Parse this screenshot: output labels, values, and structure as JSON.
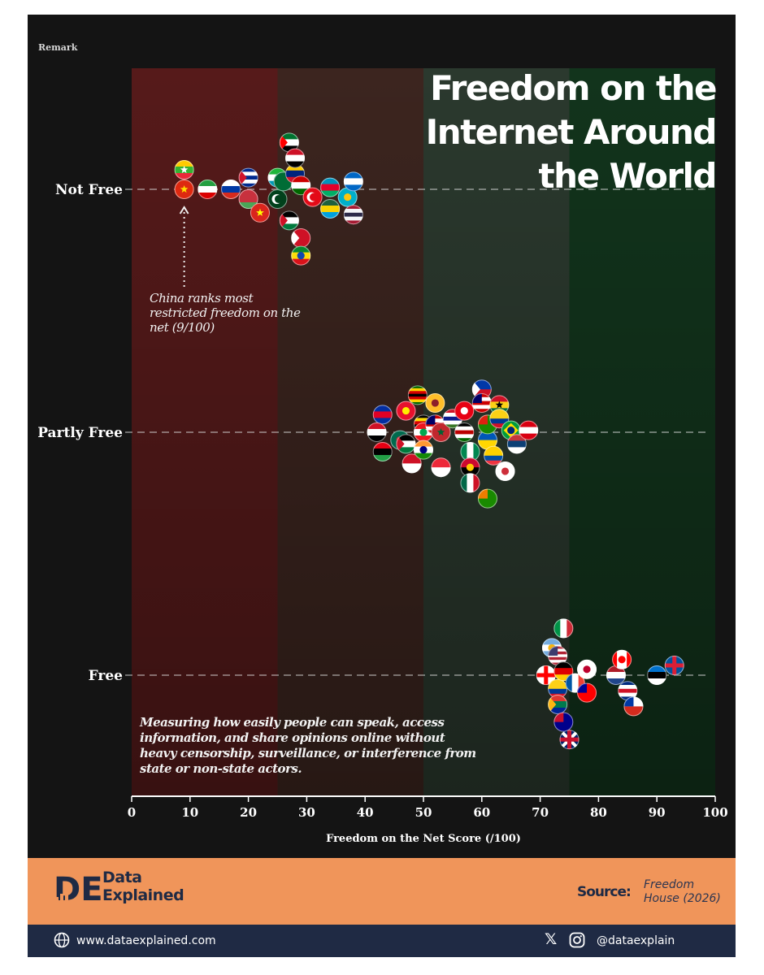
{
  "header": {
    "remark": "Remark",
    "title": "Freedom on the Internet Around the World"
  },
  "annotation": "China ranks most restricted freedom on the net (9/100)",
  "description": "Measuring how easily people can speak, access information, and share opinions online without heavy censorship, surveillance, or interference from state or non-state actors.",
  "chart_data": {
    "type": "scatter",
    "title": "Freedom on the Internet Around the World",
    "xlabel": "Freedom on the Net Score (/100)",
    "ylabel": "",
    "xlim": [
      0,
      100
    ],
    "x_ticks": [
      "0",
      "10",
      "20",
      "30",
      "40",
      "50",
      "60",
      "70",
      "80",
      "90",
      "100"
    ],
    "categories": [
      "Not Free",
      "Partly Free",
      "Free"
    ],
    "bands": [
      {
        "from": 0,
        "to": 25,
        "color": "#5a1a1a"
      },
      {
        "from": 25,
        "to": 50,
        "color": "#3e2620"
      },
      {
        "from": 50,
        "to": 75,
        "color": "#2c3b2f"
      },
      {
        "from": 75,
        "to": 100,
        "color": "#12361c"
      }
    ],
    "series": [
      {
        "name": "Not Free",
        "points": [
          {
            "x": 9,
            "dy": 0,
            "flag": "china"
          },
          {
            "x": 9,
            "dy": -1,
            "flag": "myanmar"
          },
          {
            "x": 13,
            "dy": 0,
            "flag": "iran"
          },
          {
            "x": 17,
            "dy": 0,
            "flag": "russia"
          },
          {
            "x": 20,
            "dy": 0.5,
            "flag": "belarus"
          },
          {
            "x": 20,
            "dy": -0.6,
            "flag": "cuba"
          },
          {
            "x": 22,
            "dy": 1.2,
            "flag": "vietnam"
          },
          {
            "x": 25,
            "dy": -0.6,
            "flag": "uzbekistan"
          },
          {
            "x": 25,
            "dy": 0.5,
            "flag": "pakistan"
          },
          {
            "x": 26,
            "dy": -0.4,
            "flag": "saudi-arabia"
          },
          {
            "x": 27,
            "dy": -2.4,
            "flag": "uae"
          },
          {
            "x": 28,
            "dy": -0.8,
            "flag": "venezuela"
          },
          {
            "x": 28,
            "dy": -1.6,
            "flag": "egypt"
          },
          {
            "x": 27,
            "dy": 1.6,
            "flag": "jordan"
          },
          {
            "x": 29,
            "dy": 2.5,
            "flag": "bahrain"
          },
          {
            "x": 29,
            "dy": 3.4,
            "flag": "ethiopia"
          },
          {
            "x": 29,
            "dy": -0.2,
            "flag": "tajikistan"
          },
          {
            "x": 31,
            "dy": 0.4,
            "flag": "turkey"
          },
          {
            "x": 34,
            "dy": -0.1,
            "flag": "azerbaijan"
          },
          {
            "x": 34,
            "dy": 1.0,
            "flag": "rwanda"
          },
          {
            "x": 37,
            "dy": 0.4,
            "flag": "kazakhstan"
          },
          {
            "x": 38,
            "dy": -0.4,
            "flag": "nicaragua"
          },
          {
            "x": 38,
            "dy": 1.3,
            "flag": "thailand"
          }
        ]
      },
      {
        "name": "Partly Free",
        "points": [
          {
            "x": 43,
            "dy": -0.9,
            "flag": "cambodia"
          },
          {
            "x": 42,
            "dy": 0,
            "flag": "iraq"
          },
          {
            "x": 43,
            "dy": 1.0,
            "flag": "libya"
          },
          {
            "x": 46,
            "dy": 0.4,
            "flag": "bangladesh"
          },
          {
            "x": 47,
            "dy": -1.1,
            "flag": "kyrgyzstan"
          },
          {
            "x": 47,
            "dy": 0.6,
            "flag": "palestine"
          },
          {
            "x": 48,
            "dy": 1.6,
            "flag": "indonesia"
          },
          {
            "x": 49,
            "dy": -1.9,
            "flag": "zimbabwe"
          },
          {
            "x": 50,
            "dy": -0.4,
            "flag": "uganda"
          },
          {
            "x": 50,
            "dy": 0,
            "flag": "lebanon"
          },
          {
            "x": 50,
            "dy": 0.9,
            "flag": "india"
          },
          {
            "x": 52,
            "dy": -1.5,
            "flag": "sri-lanka"
          },
          {
            "x": 52,
            "dy": -0.4,
            "flag": "malaysia"
          },
          {
            "x": 53,
            "dy": 0,
            "flag": "morocco"
          },
          {
            "x": 53,
            "dy": 1.8,
            "flag": "singapore"
          },
          {
            "x": 55,
            "dy": -0.7,
            "flag": "gambia"
          },
          {
            "x": 57,
            "dy": 0,
            "flag": "kenya"
          },
          {
            "x": 57,
            "dy": -1.1,
            "flag": "tunisia"
          },
          {
            "x": 58,
            "dy": 1.0,
            "flag": "nigeria"
          },
          {
            "x": 58,
            "dy": 1.8,
            "flag": "angola"
          },
          {
            "x": 58,
            "dy": 2.6,
            "flag": "mexico"
          },
          {
            "x": 60,
            "dy": -2.2,
            "flag": "philippines"
          },
          {
            "x": 60,
            "dy": -1.5,
            "flag": "malaysia-2"
          },
          {
            "x": 61,
            "dy": 0.4,
            "flag": "ukraine"
          },
          {
            "x": 61,
            "dy": -0.4,
            "flag": "zambia"
          },
          {
            "x": 61,
            "dy": 3.4,
            "flag": "zambia-2"
          },
          {
            "x": 62,
            "dy": 1.2,
            "flag": "ecuador"
          },
          {
            "x": 63,
            "dy": -1.4,
            "flag": "ghana"
          },
          {
            "x": 63,
            "dy": -0.7,
            "flag": "colombia"
          },
          {
            "x": 64,
            "dy": 2.0,
            "flag": "south-korea"
          },
          {
            "x": 65,
            "dy": -0.1,
            "flag": "brazil"
          },
          {
            "x": 66,
            "dy": 0.6,
            "flag": "serbia"
          },
          {
            "x": 68,
            "dy": -0.1,
            "flag": "armenia"
          }
        ]
      },
      {
        "name": "Free",
        "points": [
          {
            "x": 71,
            "dy": 0,
            "flag": "georgia"
          },
          {
            "x": 72,
            "dy": -1.4,
            "flag": "argentina"
          },
          {
            "x": 73,
            "dy": -1.0,
            "flag": "usa"
          },
          {
            "x": 73,
            "dy": 0.7,
            "flag": "colombia-2"
          },
          {
            "x": 73,
            "dy": 1.5,
            "flag": "south-africa"
          },
          {
            "x": 74,
            "dy": -2.4,
            "flag": "italy"
          },
          {
            "x": 74,
            "dy": 2.4,
            "flag": "australia"
          },
          {
            "x": 74,
            "dy": -0.2,
            "flag": "germany"
          },
          {
            "x": 75,
            "dy": 3.3,
            "flag": "uk"
          },
          {
            "x": 76,
            "dy": 0.4,
            "flag": "france"
          },
          {
            "x": 78,
            "dy": -0.3,
            "flag": "japan"
          },
          {
            "x": 78,
            "dy": 0.9,
            "flag": "taiwan"
          },
          {
            "x": 83,
            "dy": 0,
            "flag": "netherlands"
          },
          {
            "x": 84,
            "dy": -0.8,
            "flag": "canada"
          },
          {
            "x": 85,
            "dy": 0.8,
            "flag": "costa-rica"
          },
          {
            "x": 86,
            "dy": 1.6,
            "flag": "chile"
          },
          {
            "x": 90,
            "dy": 0,
            "flag": "estonia"
          },
          {
            "x": 93,
            "dy": -0.5,
            "flag": "iceland"
          }
        ]
      }
    ]
  },
  "brand": {
    "name": "Data Explained",
    "logo": "DE"
  },
  "source": {
    "label": "Source:",
    "value": "Freedom House (2026)"
  },
  "footer": {
    "website": "www.dataexplained.com",
    "handle": "@dataexplain",
    "icons": [
      "globe-icon",
      "x-icon",
      "instagram-icon"
    ]
  }
}
